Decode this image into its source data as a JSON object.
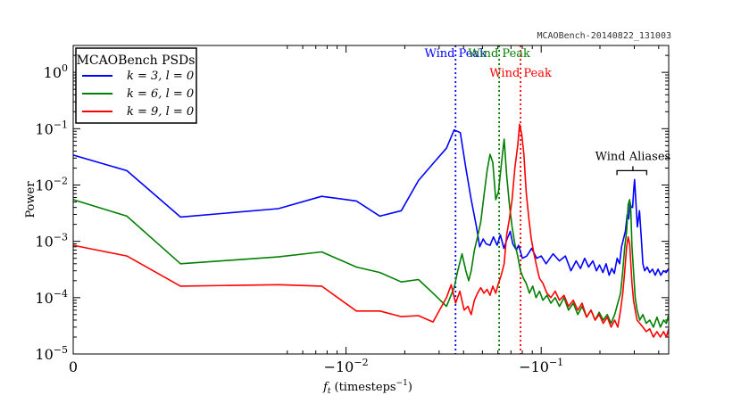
{
  "watermark": "MCAOBench-20140822_131003",
  "chart_data": {
    "type": "line",
    "title": "",
    "xlabel": "f_t (timesteps^-1)",
    "xlabel_main": "f",
    "xlabel_sub": "t",
    "xlabel_rest": "(timesteps",
    "xlabel_sup": "−1",
    "xlabel_close": ")",
    "ylabel": "Power",
    "x_scale": "symlog",
    "y_scale": "log",
    "xlim": [
      0,
      -0.45
    ],
    "ylim": [
      1e-05,
      3
    ],
    "x_ticks": [
      {
        "value": 0,
        "label": "0",
        "sup": ""
      },
      {
        "value": -0.01,
        "label": "−10",
        "sup": "−2"
      },
      {
        "value": -0.1,
        "label": "−10",
        "sup": "−1"
      }
    ],
    "y_ticks": [
      {
        "value": 1e-05,
        "label": "10",
        "sup": "−5"
      },
      {
        "value": 0.0001,
        "label": "10",
        "sup": "−4"
      },
      {
        "value": 0.001,
        "label": "10",
        "sup": "−3"
      },
      {
        "value": 0.01,
        "label": "10",
        "sup": "−2"
      },
      {
        "value": 0.1,
        "label": "10",
        "sup": "−1"
      },
      {
        "value": 1,
        "label": "10",
        "sup": "0"
      }
    ],
    "legend": {
      "title": "MCAOBench PSDs",
      "placement": "top-left",
      "entries": [
        "k = 3, l = 0",
        "k = 6, l = 0",
        "k = 9, l = 0"
      ]
    },
    "wind_peaks": [
      {
        "label": "Wind Peak",
        "x": -0.0364,
        "color": "#0000ff"
      },
      {
        "label": "Wind Peak",
        "x": -0.0609,
        "color": "#008000"
      },
      {
        "label": "Wind Peak",
        "x": -0.0784,
        "color": "#ff0000"
      }
    ],
    "wind_aliases": {
      "label": "Wind Aliases",
      "x_range": [
        -0.2445,
        -0.3472
      ],
      "x_center": -0.295,
      "y": 0.018
    },
    "series": [
      {
        "name": "k = 3, l = 0",
        "color": "#0000ff",
        "points": [
          [
            0,
            0.034
          ],
          [
            -0.0011,
            0.018
          ],
          [
            -0.0022,
            0.0027
          ],
          [
            -0.0045,
            0.0038
          ],
          [
            -0.0075,
            0.0063
          ],
          [
            -0.0113,
            0.0052
          ],
          [
            -0.0149,
            0.0028
          ],
          [
            -0.0192,
            0.0035
          ],
          [
            -0.0235,
            0.012
          ],
          [
            -0.0279,
            0.024
          ],
          [
            -0.0327,
            0.045
          ],
          [
            -0.0358,
            0.095
          ],
          [
            -0.0385,
            0.085
          ],
          [
            -0.0411,
            0.02
          ],
          [
            -0.0438,
            0.0055
          ],
          [
            -0.0466,
            0.0018
          ],
          [
            -0.0484,
            0.0008
          ],
          [
            -0.0504,
            0.0011
          ],
          [
            -0.0522,
            0.0009
          ],
          [
            -0.0547,
            0.00085
          ],
          [
            -0.0569,
            0.0012
          ],
          [
            -0.0594,
            0.00085
          ],
          [
            -0.0618,
            0.0013
          ],
          [
            -0.0644,
            0.00075
          ],
          [
            -0.0669,
            0.0011
          ],
          [
            -0.0694,
            0.0015
          ],
          [
            -0.0715,
            0.0009
          ],
          [
            -0.0745,
            0.0007
          ],
          [
            -0.0766,
            0.00085
          ],
          [
            -0.0801,
            0.0005
          ],
          [
            -0.0844,
            0.00055
          ],
          [
            -0.0893,
            0.00075
          ],
          [
            -0.0949,
            0.0005
          ],
          [
            -0.1,
            0.00055
          ],
          [
            -0.106,
            0.0004
          ],
          [
            -0.115,
            0.0006
          ],
          [
            -0.124,
            0.00045
          ],
          [
            -0.133,
            0.00055
          ],
          [
            -0.142,
            0.0003
          ],
          [
            -0.151,
            0.00045
          ],
          [
            -0.159,
            0.00033
          ],
          [
            -0.167,
            0.0005
          ],
          [
            -0.175,
            0.00035
          ],
          [
            -0.184,
            0.00045
          ],
          [
            -0.192,
            0.0003
          ],
          [
            -0.199,
            0.00038
          ],
          [
            -0.207,
            0.00028
          ],
          [
            -0.215,
            0.0004
          ],
          [
            -0.223,
            0.00025
          ],
          [
            -0.23,
            0.00033
          ],
          [
            -0.237,
            0.00027
          ],
          [
            -0.245,
            0.0005
          ],
          [
            -0.252,
            0.0004
          ],
          [
            -0.258,
            0.0008
          ],
          [
            -0.264,
            0.0011
          ],
          [
            -0.27,
            0.0015
          ],
          [
            -0.276,
            0.003
          ],
          [
            -0.281,
            0.0025
          ],
          [
            -0.285,
            0.005
          ],
          [
            -0.289,
            0.004
          ],
          [
            -0.294,
            0.004
          ],
          [
            -0.298,
            0.0085
          ],
          [
            -0.301,
            0.0125
          ],
          [
            -0.305,
            0.0055
          ],
          [
            -0.311,
            0.0018
          ],
          [
            -0.319,
            0.0035
          ],
          [
            -0.326,
            0.0011
          ],
          [
            -0.332,
            0.0004
          ],
          [
            -0.339,
            0.0003
          ],
          [
            -0.349,
            0.00035
          ],
          [
            -0.36,
            0.00028
          ],
          [
            -0.372,
            0.00032
          ],
          [
            -0.384,
            0.00025
          ],
          [
            -0.397,
            0.00032
          ],
          [
            -0.41,
            0.00025
          ],
          [
            -0.423,
            0.0003
          ],
          [
            -0.437,
            0.00028
          ],
          [
            -0.45,
            0.00033
          ]
        ]
      },
      {
        "name": "k = 6, l = 0",
        "color": "#008000",
        "points": [
          [
            0,
            0.0055
          ],
          [
            -0.0011,
            0.0028
          ],
          [
            -0.0022,
            0.0004
          ],
          [
            -0.0045,
            0.00053
          ],
          [
            -0.0075,
            0.00065
          ],
          [
            -0.0113,
            0.00035
          ],
          [
            -0.0149,
            0.00028
          ],
          [
            -0.0192,
            0.00019
          ],
          [
            -0.0235,
            0.00021
          ],
          [
            -0.0279,
            0.00012
          ],
          [
            -0.0327,
            7e-05
          ],
          [
            -0.0358,
            0.00015
          ],
          [
            -0.0372,
            0.00028
          ],
          [
            -0.0393,
            0.0006
          ],
          [
            -0.0411,
            0.0003
          ],
          [
            -0.0425,
            0.0002
          ],
          [
            -0.0438,
            0.0003
          ],
          [
            -0.0455,
            0.0007
          ],
          [
            -0.0472,
            0.0012
          ],
          [
            -0.049,
            0.0022
          ],
          [
            -0.0509,
            0.0065
          ],
          [
            -0.0528,
            0.018
          ],
          [
            -0.0547,
            0.035
          ],
          [
            -0.0565,
            0.025
          ],
          [
            -0.0585,
            0.0055
          ],
          [
            -0.0604,
            0.0075
          ],
          [
            -0.0624,
            0.022
          ],
          [
            -0.0646,
            0.065
          ],
          [
            -0.0665,
            0.015
          ],
          [
            -0.0687,
            0.0045
          ],
          [
            -0.0709,
            0.0018
          ],
          [
            -0.0733,
            0.0009
          ],
          [
            -0.0758,
            0.00055
          ],
          [
            -0.0783,
            0.0003
          ],
          [
            -0.0811,
            0.00022
          ],
          [
            -0.0838,
            0.00018
          ],
          [
            -0.087,
            0.00012
          ],
          [
            -0.0905,
            0.00016
          ],
          [
            -0.0941,
            0.0001
          ],
          [
            -0.098,
            0.00013
          ],
          [
            -0.102,
            9e-05
          ],
          [
            -0.107,
            0.00011
          ],
          [
            -0.112,
            8e-05
          ],
          [
            -0.118,
            0.0001
          ],
          [
            -0.124,
            7e-05
          ],
          [
            -0.131,
            0.0001
          ],
          [
            -0.138,
            6e-05
          ],
          [
            -0.146,
            8e-05
          ],
          [
            -0.154,
            5e-05
          ],
          [
            -0.162,
            7e-05
          ],
          [
            -0.171,
            4.5e-05
          ],
          [
            -0.18,
            6e-05
          ],
          [
            -0.189,
            4e-05
          ],
          [
            -0.198,
            5.5e-05
          ],
          [
            -0.208,
            4e-05
          ],
          [
            -0.218,
            5e-05
          ],
          [
            -0.228,
            3.5e-05
          ],
          [
            -0.238,
            5e-05
          ],
          [
            -0.247,
            8e-05
          ],
          [
            -0.255,
            0.00012
          ],
          [
            -0.262,
            0.0003
          ],
          [
            -0.268,
            0.0008
          ],
          [
            -0.274,
            0.0015
          ],
          [
            -0.279,
            0.0045
          ],
          [
            -0.284,
            0.0055
          ],
          [
            -0.288,
            0.0035
          ],
          [
            -0.292,
            0.0008
          ],
          [
            -0.297,
            0.0003
          ],
          [
            -0.303,
            0.0001
          ],
          [
            -0.31,
            6e-05
          ],
          [
            -0.32,
            4e-05
          ],
          [
            -0.332,
            5e-05
          ],
          [
            -0.345,
            3.5e-05
          ],
          [
            -0.36,
            4e-05
          ],
          [
            -0.376,
            3e-05
          ],
          [
            -0.392,
            4.5e-05
          ],
          [
            -0.408,
            3e-05
          ],
          [
            -0.424,
            4e-05
          ],
          [
            -0.438,
            3.5e-05
          ],
          [
            -0.45,
            5e-05
          ]
        ]
      },
      {
        "name": "k = 9, l = 0",
        "color": "#ff0000",
        "points": [
          [
            0,
            0.00085
          ],
          [
            -0.0011,
            0.00055
          ],
          [
            -0.0022,
            0.00016
          ],
          [
            -0.0045,
            0.00017
          ],
          [
            -0.0075,
            0.00016
          ],
          [
            -0.0113,
            5.8e-05
          ],
          [
            -0.0149,
            5.8e-05
          ],
          [
            -0.0192,
            4.6e-05
          ],
          [
            -0.0235,
            4.8e-05
          ],
          [
            -0.0279,
            3.7e-05
          ],
          [
            -0.0327,
            0.0001
          ],
          [
            -0.0346,
            0.00017
          ],
          [
            -0.0364,
            8e-05
          ],
          [
            -0.0383,
            0.00013
          ],
          [
            -0.0403,
            6e-05
          ],
          [
            -0.0421,
            7e-05
          ],
          [
            -0.0438,
            5e-05
          ],
          [
            -0.0455,
            9e-05
          ],
          [
            -0.0472,
            0.00012
          ],
          [
            -0.049,
            0.00015
          ],
          [
            -0.0509,
            0.00012
          ],
          [
            -0.0528,
            0.00014
          ],
          [
            -0.0547,
            0.00011
          ],
          [
            -0.0565,
            0.00016
          ],
          [
            -0.0585,
            0.00012
          ],
          [
            -0.0604,
            0.00018
          ],
          [
            -0.0624,
            0.00025
          ],
          [
            -0.0646,
            0.0004
          ],
          [
            -0.0665,
            0.0013
          ],
          [
            -0.0687,
            0.0025
          ],
          [
            -0.0709,
            0.0055
          ],
          [
            -0.0733,
            0.02
          ],
          [
            -0.0758,
            0.05
          ],
          [
            -0.0775,
            0.12
          ],
          [
            -0.0795,
            0.08
          ],
          [
            -0.0815,
            0.035
          ],
          [
            -0.0838,
            0.0075
          ],
          [
            -0.0865,
            0.0025
          ],
          [
            -0.089,
            0.0011
          ],
          [
            -0.0918,
            0.0006
          ],
          [
            -0.095,
            0.00035
          ],
          [
            -0.098,
            0.00022
          ],
          [
            -0.102,
            0.00018
          ],
          [
            -0.107,
            0.00012
          ],
          [
            -0.112,
            0.0001
          ],
          [
            -0.118,
            0.00013
          ],
          [
            -0.124,
            9e-05
          ],
          [
            -0.131,
            0.00011
          ],
          [
            -0.138,
            7e-05
          ],
          [
            -0.146,
            9e-05
          ],
          [
            -0.154,
            6e-05
          ],
          [
            -0.162,
            8e-05
          ],
          [
            -0.171,
            4.5e-05
          ],
          [
            -0.18,
            6e-05
          ],
          [
            -0.189,
            4e-05
          ],
          [
            -0.198,
            5e-05
          ],
          [
            -0.208,
            3.5e-05
          ],
          [
            -0.218,
            4.5e-05
          ],
          [
            -0.228,
            3e-05
          ],
          [
            -0.238,
            4e-05
          ],
          [
            -0.247,
            3e-05
          ],
          [
            -0.255,
            6e-05
          ],
          [
            -0.262,
            0.00012
          ],
          [
            -0.268,
            0.0003
          ],
          [
            -0.274,
            0.0008
          ],
          [
            -0.279,
            0.0012
          ],
          [
            -0.284,
            0.0009
          ],
          [
            -0.288,
            0.0004
          ],
          [
            -0.292,
            0.00018
          ],
          [
            -0.297,
            9e-05
          ],
          [
            -0.303,
            6e-05
          ],
          [
            -0.31,
            4e-05
          ],
          [
            -0.32,
            3.5e-05
          ],
          [
            -0.332,
            3e-05
          ],
          [
            -0.345,
            2.5e-05
          ],
          [
            -0.36,
            2.8e-05
          ],
          [
            -0.376,
            2e-05
          ],
          [
            -0.392,
            2.5e-05
          ],
          [
            -0.408,
            2e-05
          ],
          [
            -0.424,
            2.5e-05
          ],
          [
            -0.438,
            2e-05
          ],
          [
            -0.45,
            2.8e-05
          ]
        ]
      }
    ]
  }
}
